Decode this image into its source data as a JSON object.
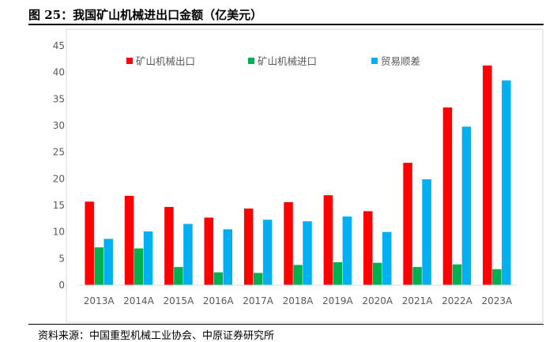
{
  "figure": {
    "title": "图 25：我国矿山机械进出口金额（亿美元）",
    "source": "资料来源：中国重型机械工业协会、中原证券研究所"
  },
  "chart_data": {
    "type": "bar",
    "title": "",
    "xlabel": "",
    "ylabel": "",
    "ylim": [
      0,
      45
    ],
    "yticks": [
      0,
      5,
      10,
      15,
      20,
      25,
      30,
      35,
      40,
      45
    ],
    "grid": false,
    "legend_position": "top",
    "categories": [
      "2013A",
      "2014A",
      "2015A",
      "2016A",
      "2017A",
      "2018A",
      "2019A",
      "2020A",
      "2021A",
      "2022A",
      "2023A"
    ],
    "series": [
      {
        "name": "矿山机械出口",
        "color": "#ff0000",
        "values": [
          15.7,
          16.8,
          14.7,
          12.7,
          14.4,
          15.6,
          16.9,
          13.9,
          23.0,
          33.4,
          41.3
        ]
      },
      {
        "name": "矿山机械进口",
        "color": "#00b050",
        "values": [
          7.1,
          6.9,
          3.4,
          2.4,
          2.3,
          3.8,
          4.3,
          4.2,
          3.4,
          3.9,
          3.0
        ]
      },
      {
        "name": "贸易顺差",
        "color": "#00b0f0",
        "values": [
          8.7,
          10.1,
          11.5,
          10.5,
          12.3,
          12.0,
          12.9,
          10.0,
          19.9,
          29.8,
          38.5
        ]
      }
    ]
  }
}
